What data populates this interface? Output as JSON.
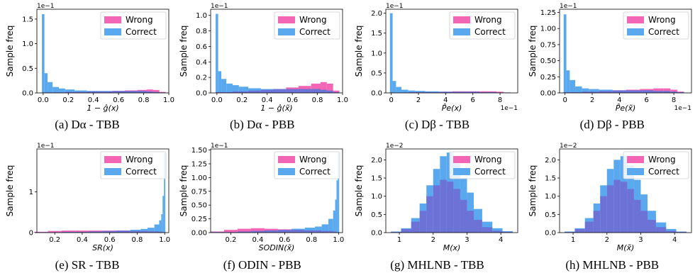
{
  "legend": {
    "wrong": "Wrong",
    "correct": "Correct"
  },
  "colors": {
    "wrong": "#f266b5",
    "correct": "#5aa9ee",
    "overlap": "#6d72d6",
    "axis": "#000000"
  },
  "ylabel": "Sample freq",
  "chart_data": [
    {
      "type": "bar",
      "caption": "(a) Dα - TBB",
      "xlabel": "1 − ĝ(x)",
      "scale_y": "1e−1",
      "xlim": [
        -0.05,
        1.0
      ],
      "ylim": [
        0,
        1.7
      ],
      "xticks": [
        0.0,
        0.2,
        0.4,
        0.6,
        0.8,
        1.0
      ],
      "xticklabels": [
        "0.0",
        "0.2",
        "0.4",
        "0.6",
        "0.8",
        "1.0"
      ],
      "yticks": [
        0.0,
        0.5,
        1.0,
        1.5
      ],
      "yticklabels": [
        "0.0",
        "0.5",
        "1.0",
        "1.5"
      ],
      "x": [
        0.0,
        0.02,
        0.05,
        0.1,
        0.15,
        0.2,
        0.3,
        0.4,
        0.5,
        0.6,
        0.7,
        0.8,
        0.85,
        0.9,
        0.95
      ],
      "series": [
        {
          "name": "Wrong",
          "values": [
            0.01,
            0.01,
            0.01,
            0.01,
            0.01,
            0.02,
            0.02,
            0.03,
            0.03,
            0.04,
            0.05,
            0.06,
            0.07,
            0.06,
            0.02
          ]
        },
        {
          "name": "Correct",
          "values": [
            1.6,
            0.4,
            0.22,
            0.12,
            0.09,
            0.07,
            0.05,
            0.04,
            0.04,
            0.04,
            0.04,
            0.04,
            0.03,
            0.02,
            0.01
          ]
        }
      ]
    },
    {
      "type": "bar",
      "caption": "(b) Dα - PBB",
      "xlabel": "1 − ĝ(x̃)",
      "scale_y": "1e−1",
      "xlim": [
        -0.05,
        1.0
      ],
      "ylim": [
        0,
        1.08
      ],
      "xticks": [
        0.0,
        0.2,
        0.4,
        0.6,
        0.8,
        1.0
      ],
      "xticklabels": [
        "0.0",
        "0.2",
        "0.4",
        "0.6",
        "0.8",
        "1.0"
      ],
      "yticks": [
        0.0,
        0.2,
        0.4,
        0.6,
        0.8,
        1.0
      ],
      "yticklabels": [
        "0.0",
        "0.2",
        "0.4",
        "0.6",
        "0.8",
        "1.0"
      ],
      "x": [
        0.0,
        0.02,
        0.05,
        0.1,
        0.15,
        0.2,
        0.3,
        0.4,
        0.5,
        0.6,
        0.7,
        0.8,
        0.85,
        0.9,
        0.95
      ],
      "series": [
        {
          "name": "Wrong",
          "values": [
            0.01,
            0.01,
            0.01,
            0.01,
            0.02,
            0.02,
            0.03,
            0.04,
            0.05,
            0.07,
            0.09,
            0.12,
            0.14,
            0.12,
            0.03
          ]
        },
        {
          "name": "Correct",
          "values": [
            1.02,
            0.28,
            0.18,
            0.12,
            0.1,
            0.08,
            0.06,
            0.05,
            0.05,
            0.05,
            0.05,
            0.05,
            0.04,
            0.03,
            0.01
          ]
        }
      ]
    },
    {
      "type": "bar",
      "caption": "(c) Dβ - TBB",
      "xlabel": "P̂e(x)",
      "scale_y": "1e−1",
      "scale_x": "1e−1",
      "xlim": [
        -0.4,
        9.3
      ],
      "ylim": [
        0,
        2.1
      ],
      "xticks": [
        0,
        2,
        4,
        6,
        8
      ],
      "xticklabels": [
        "0",
        "2",
        "4",
        "6",
        "8"
      ],
      "yticks": [
        0.0,
        0.5,
        1.0,
        1.5,
        2.0
      ],
      "yticklabels": [
        "0.0",
        "0.5",
        "1.0",
        "1.5",
        "2.0"
      ],
      "x": [
        0.0,
        0.2,
        0.5,
        1,
        1.5,
        2,
        3,
        4,
        5,
        6,
        7,
        7.5,
        8,
        8.5
      ],
      "series": [
        {
          "name": "Wrong",
          "values": [
            0.01,
            0.01,
            0.01,
            0.01,
            0.02,
            0.02,
            0.02,
            0.03,
            0.04,
            0.04,
            0.04,
            0.04,
            0.03,
            0.01
          ]
        },
        {
          "name": "Correct",
          "values": [
            2.0,
            0.3,
            0.15,
            0.08,
            0.06,
            0.05,
            0.04,
            0.03,
            0.03,
            0.03,
            0.02,
            0.02,
            0.01,
            0.01
          ]
        }
      ]
    },
    {
      "type": "bar",
      "caption": "(d) Dβ - PBB",
      "xlabel": "P̂e(x̃)",
      "scale_y": "1e−1",
      "scale_x": "1e−1",
      "xlim": [
        -0.4,
        9.3
      ],
      "ylim": [
        0,
        1.3
      ],
      "xticks": [
        0,
        2,
        4,
        6,
        8
      ],
      "xticklabels": [
        "0",
        "2",
        "4",
        "6",
        "8"
      ],
      "yticks": [
        0.0,
        0.25,
        0.5,
        0.75,
        1.0,
        1.25
      ],
      "yticklabels": [
        "0.00",
        "0.25",
        "0.50",
        "0.75",
        "1.00",
        "1.25"
      ],
      "x": [
        0.0,
        0.2,
        0.5,
        1,
        1.5,
        2,
        3,
        4,
        5,
        6,
        7,
        7.5,
        8,
        8.5
      ],
      "series": [
        {
          "name": "Wrong",
          "values": [
            0.01,
            0.01,
            0.01,
            0.01,
            0.02,
            0.02,
            0.03,
            0.04,
            0.05,
            0.06,
            0.07,
            0.07,
            0.05,
            0.02
          ]
        },
        {
          "name": "Correct",
          "values": [
            1.22,
            0.35,
            0.2,
            0.1,
            0.07,
            0.06,
            0.05,
            0.04,
            0.04,
            0.04,
            0.03,
            0.03,
            0.02,
            0.01
          ]
        }
      ]
    },
    {
      "type": "bar",
      "caption": "(e) SR - TBB",
      "xlabel": "SR(x)",
      "scale_y": "1e−1",
      "xlim": [
        0.07,
        1.03
      ],
      "ylim": [
        0,
        2.05
      ],
      "xticks": [
        0.2,
        0.4,
        0.6,
        0.8,
        1.0
      ],
      "xticklabels": [
        "0.2",
        "0.4",
        "0.6",
        "0.8",
        "1.0"
      ],
      "yticks": [
        0,
        1
      ],
      "yticklabels": [
        "0",
        "1"
      ],
      "x": [
        0.1,
        0.2,
        0.3,
        0.4,
        0.5,
        0.6,
        0.7,
        0.8,
        0.85,
        0.9,
        0.95,
        0.97,
        0.98,
        0.99,
        1.0
      ],
      "series": [
        {
          "name": "Wrong",
          "values": [
            0.02,
            0.04,
            0.05,
            0.05,
            0.05,
            0.05,
            0.05,
            0.04,
            0.04,
            0.03,
            0.03,
            0.02,
            0.02,
            0.01,
            0.01
          ]
        },
        {
          "name": "Correct",
          "values": [
            0.01,
            0.01,
            0.02,
            0.02,
            0.03,
            0.04,
            0.05,
            0.07,
            0.09,
            0.12,
            0.2,
            0.3,
            0.45,
            0.9,
            1.95
          ]
        }
      ]
    },
    {
      "type": "bar",
      "caption": "(f) ODIN - PBB",
      "xlabel": "SODIN(x̃)",
      "scale_y": "1e−1",
      "xlim": [
        0.05,
        1.03
      ],
      "ylim": [
        0,
        1.52
      ],
      "xticks": [
        0.2,
        0.4,
        0.6,
        0.8,
        1.0
      ],
      "xticklabels": [
        "0.2",
        "0.4",
        "0.6",
        "0.8",
        "1.0"
      ],
      "yticks": [
        0.0,
        0.25,
        0.5,
        0.75,
        1.0,
        1.25,
        1.5
      ],
      "yticklabels": [
        "0.00",
        "0.25",
        "0.50",
        "0.75",
        "1.00",
        "1.25",
        "1.50"
      ],
      "x": [
        0.1,
        0.2,
        0.3,
        0.4,
        0.5,
        0.6,
        0.7,
        0.8,
        0.85,
        0.9,
        0.95,
        0.97,
        0.98,
        0.99,
        1.0
      ],
      "series": [
        {
          "name": "Wrong",
          "values": [
            0.02,
            0.05,
            0.07,
            0.08,
            0.07,
            0.06,
            0.05,
            0.04,
            0.04,
            0.03,
            0.03,
            0.02,
            0.02,
            0.01,
            0.01
          ]
        },
        {
          "name": "Correct",
          "values": [
            0.01,
            0.01,
            0.02,
            0.03,
            0.04,
            0.05,
            0.07,
            0.09,
            0.11,
            0.15,
            0.25,
            0.4,
            0.6,
            0.95,
            1.45
          ]
        }
      ]
    },
    {
      "type": "bar",
      "caption": "(g) MHLNB - TBB",
      "xlabel": "M(x)",
      "scale_y": "1e−2",
      "xlim": [
        0.6,
        4.5
      ],
      "ylim": [
        0,
        2.3
      ],
      "xticks": [
        1,
        2,
        3,
        4
      ],
      "xticklabels": [
        "1",
        "2",
        "3",
        "4"
      ],
      "yticks": [
        0.0,
        0.5,
        1.0,
        1.5,
        2.0
      ],
      "yticklabels": [
        "0.0",
        "0.5",
        "1.0",
        "1.5",
        "2.0"
      ],
      "x": [
        0.9,
        1.2,
        1.5,
        1.7,
        1.9,
        2.1,
        2.3,
        2.5,
        2.7,
        2.9,
        3.1,
        3.3,
        3.6,
        3.9,
        4.2
      ],
      "series": [
        {
          "name": "Wrong",
          "values": [
            0.02,
            0.1,
            0.3,
            0.6,
            1.0,
            1.3,
            1.45,
            1.4,
            1.2,
            0.9,
            0.6,
            0.35,
            0.15,
            0.05,
            0.02
          ]
        },
        {
          "name": "Correct",
          "values": [
            0.03,
            0.12,
            0.4,
            0.8,
            1.3,
            1.75,
            2.1,
            2.2,
            1.9,
            1.5,
            1.1,
            0.65,
            0.3,
            0.12,
            0.04
          ]
        }
      ]
    },
    {
      "type": "bar",
      "caption": "(h) MHLNB - PBB",
      "xlabel": "M(x̃)",
      "scale_y": "1e−2",
      "xlim": [
        0.6,
        4.5
      ],
      "ylim": [
        0,
        2.3
      ],
      "xticks": [
        1,
        2,
        3,
        4
      ],
      "xticklabels": [
        "1",
        "2",
        "3",
        "4"
      ],
      "yticks": [
        0.0,
        0.5,
        1.0,
        1.5,
        2.0
      ],
      "yticklabels": [
        "0.0",
        "0.5",
        "1.0",
        "1.5",
        "2.0"
      ],
      "x": [
        0.9,
        1.2,
        1.5,
        1.7,
        1.9,
        2.1,
        2.3,
        2.5,
        2.7,
        2.9,
        3.1,
        3.3,
        3.6,
        3.9,
        4.2
      ],
      "series": [
        {
          "name": "Wrong",
          "values": [
            0.02,
            0.1,
            0.3,
            0.6,
            1.0,
            1.3,
            1.45,
            1.4,
            1.2,
            0.9,
            0.6,
            0.35,
            0.15,
            0.05,
            0.02
          ]
        },
        {
          "name": "Correct",
          "values": [
            0.03,
            0.12,
            0.4,
            0.8,
            1.3,
            1.75,
            2.0,
            2.1,
            1.85,
            1.45,
            1.05,
            0.6,
            0.28,
            0.1,
            0.03
          ]
        }
      ]
    }
  ]
}
